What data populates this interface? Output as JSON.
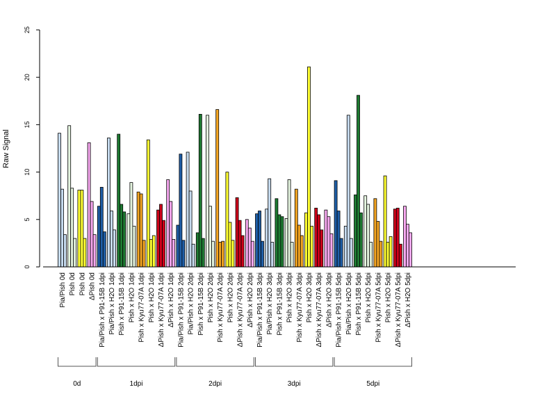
{
  "chart_data": {
    "type": "bar",
    "ylabel": "Raw Signal",
    "ylim": [
      0,
      25
    ],
    "yticks": [
      "0",
      "5",
      "10",
      "15",
      "20",
      "25"
    ],
    "groups": [
      {
        "label": "Pia/Pish 0d",
        "color": "#c6dbef",
        "values": [
          14.1,
          8.2,
          3.4
        ]
      },
      {
        "label": "Pish 0d",
        "color": "#e5f5e0",
        "values": [
          14.9,
          8.3,
          3.0
        ]
      },
      {
        "label": "Pish 0d",
        "color": "#ffff33",
        "values": [
          8.1,
          8.1,
          3.0
        ]
      },
      {
        "label": "ΔPish 0d",
        "color": "#f7a8f0",
        "values": [
          13.1,
          6.9,
          3.4
        ]
      },
      {
        "label": "Pia/Pish x P91-15B 1dpi",
        "color": "#1f5fa8",
        "values": [
          6.4,
          8.4,
          3.7
        ]
      },
      {
        "label": "Pia/Pish x H2O 1dpi",
        "color": "#c6dbef",
        "values": [
          13.6,
          5.9,
          3.9
        ]
      },
      {
        "label": "Pish x P91-15B 1dpi",
        "color": "#1e7b32",
        "values": [
          14.0,
          6.6,
          5.8
        ]
      },
      {
        "label": "Pish x H2O 1dpi",
        "color": "#e5f5e0",
        "values": [
          5.6,
          8.9,
          4.3
        ]
      },
      {
        "label": "Pish x Kyu77-07A 1dpi",
        "color": "#f5a623",
        "values": [
          7.9,
          7.7,
          2.8
        ]
      },
      {
        "label": "Pish x H2O 1dpi",
        "color": "#ffff33",
        "values": [
          13.4,
          2.9,
          3.3
        ]
      },
      {
        "label": "ΔPish x Kyu77-07A 1dpi",
        "color": "#d0021b",
        "values": [
          6.0,
          6.6,
          4.9
        ]
      },
      {
        "label": "ΔPish x H2O 1dpi",
        "color": "#f7a8f0",
        "values": [
          9.2,
          6.9,
          2.9
        ]
      },
      {
        "label": "Pia/Pish x P91-15B 2dpi",
        "color": "#1f5fa8",
        "values": [
          4.4,
          11.9,
          2.8
        ]
      },
      {
        "label": "Pia/Pish x H2O 2dpi",
        "color": "#c6dbef",
        "values": [
          12.1,
          8.0,
          2.4
        ]
      },
      {
        "label": "Pish x P91-15B 2dpi",
        "color": "#1e7b32",
        "values": [
          3.6,
          16.1,
          3.0
        ]
      },
      {
        "label": "Pish x H2O 2dpi",
        "color": "#e5f5e0",
        "values": [
          16.0,
          6.4,
          2.7
        ]
      },
      {
        "label": "Pish x Kyu77-07A 2dpi",
        "color": "#f5a623",
        "values": [
          16.6,
          2.6,
          2.7
        ]
      },
      {
        "label": "Pish x H2O 2dpi",
        "color": "#ffff33",
        "values": [
          10.0,
          4.7,
          2.8
        ]
      },
      {
        "label": "ΔPish x Kyu77-07A 2dpi",
        "color": "#d0021b",
        "values": [
          7.3,
          4.9,
          3.3
        ]
      },
      {
        "label": "ΔPish x H2O 2dpi",
        "color": "#f7a8f0",
        "values": [
          5.0,
          4.1,
          2.7
        ]
      },
      {
        "label": "Pia/Pish x P91-15B 3dpi",
        "color": "#1f5fa8",
        "values": [
          5.6,
          5.9,
          2.7
        ]
      },
      {
        "label": "Pia/Pish x H2O 3dpi",
        "color": "#c6dbef",
        "values": [
          6.1,
          9.3,
          2.6
        ]
      },
      {
        "label": "Pish x P91-15B 3dpi",
        "color": "#1e7b32",
        "values": [
          7.2,
          5.5,
          5.3
        ]
      },
      {
        "label": "Pish x H2O 3dpi",
        "color": "#e5f5e0",
        "values": [
          5.1,
          9.2,
          2.6
        ]
      },
      {
        "label": "Pish x Kyu77-07A 3dpi",
        "color": "#f5a623",
        "values": [
          8.2,
          4.4,
          3.3
        ]
      },
      {
        "label": "Pish x H2O 3dpi",
        "color": "#ffff33",
        "values": [
          5.7,
          21.1,
          4.3
        ]
      },
      {
        "label": "ΔPish x Kyu77-07A 3dpi",
        "color": "#d0021b",
        "values": [
          6.2,
          5.5,
          3.9
        ]
      },
      {
        "label": "ΔPish x H2O 3dpi",
        "color": "#f7a8f0",
        "values": [
          6.0,
          5.3,
          3.5
        ]
      },
      {
        "label": "Pia/Pish x P91-15B 5dpi",
        "color": "#1f5fa8",
        "values": [
          9.1,
          5.9,
          3.0
        ]
      },
      {
        "label": "Pia/Pish x H2O 5dpi",
        "color": "#c6dbef",
        "values": [
          4.3,
          16.0,
          3.0
        ]
      },
      {
        "label": "Pish x P91-15B 5dpi",
        "color": "#1e7b32",
        "values": [
          7.6,
          18.1,
          5.7
        ]
      },
      {
        "label": "Pish x H2O 5dpi",
        "color": "#e5f5e0",
        "values": [
          7.5,
          6.6,
          2.6
        ]
      },
      {
        "label": "Pish x Kyu77-07A 5dpi",
        "color": "#f5a623",
        "values": [
          7.2,
          4.8,
          2.7
        ]
      },
      {
        "label": "Pish x H2O 5dpi",
        "color": "#ffff33",
        "values": [
          9.6,
          2.6,
          3.2
        ]
      },
      {
        "label": "ΔPish x Kyu77-07A 5dpi",
        "color": "#d0021b",
        "values": [
          6.1,
          6.2,
          2.4
        ]
      },
      {
        "label": "ΔPish x H2O 5dpi",
        "color": "#f7a8f0",
        "values": [
          6.4,
          4.5,
          3.6
        ]
      }
    ],
    "timepoints": [
      {
        "label": "0d",
        "first": 0,
        "last": 3
      },
      {
        "label": "1dpi",
        "first": 4,
        "last": 11
      },
      {
        "label": "2dpi",
        "first": 12,
        "last": 19
      },
      {
        "label": "3dpi",
        "first": 20,
        "last": 27
      },
      {
        "label": "5dpi",
        "first": 28,
        "last": 35
      }
    ],
    "grid": false,
    "legend": "none"
  }
}
